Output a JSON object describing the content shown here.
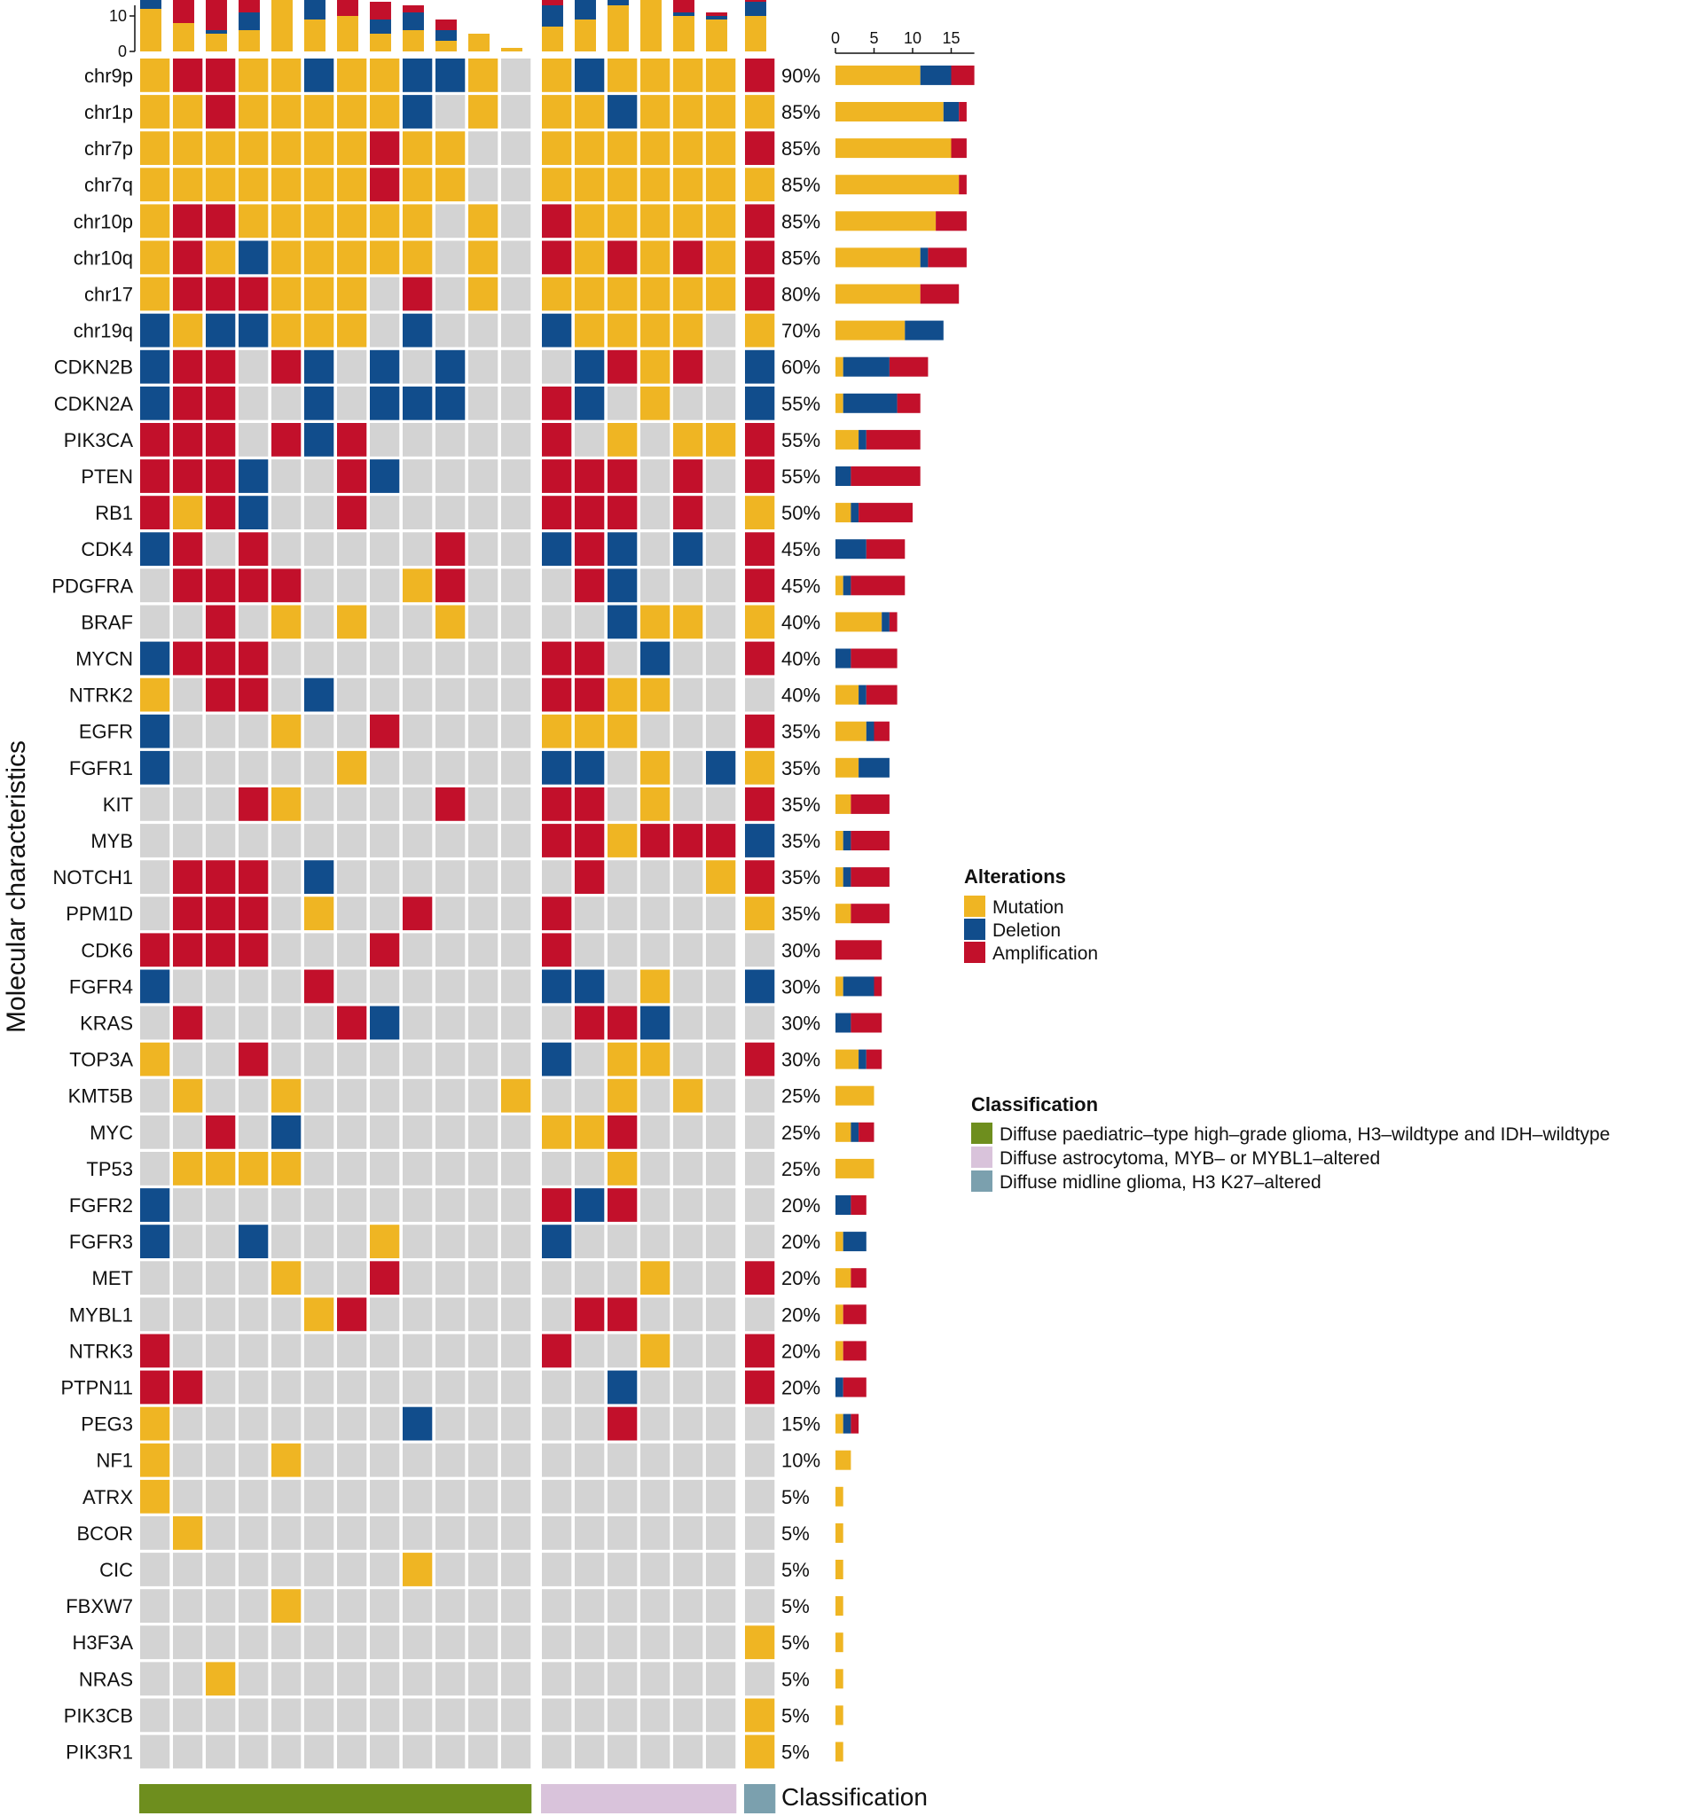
{
  "chart_data": {
    "type": "heatmap",
    "subtype": "oncoprint",
    "y_title": "Molecular characteristics",
    "colors": {
      "M": "#EFB523",
      "D": "#114D8C",
      "A": "#C2102B",
      "none": "#D3D3D3",
      "class_1": "#6E8E1E",
      "class_2": "#D9C3DB",
      "class_3": "#7BA0AE"
    },
    "status_codes": {
      "M": "Mutation",
      "D": "Deletion",
      "A": "Amplification",
      "0": "None"
    },
    "column_groups": [
      {
        "class": "class_1",
        "count": 12
      },
      {
        "class": "class_2",
        "count": 6
      },
      {
        "class": "class_3",
        "count": 1
      }
    ],
    "rows": [
      {
        "gene": "chr9p",
        "pct": "90%",
        "cells": "MAAMMDMMDDM0MDMMMMA"
      },
      {
        "gene": "chr1p",
        "pct": "85%",
        "cells": "MMAMMMMMD0M0MMDMMMM"
      },
      {
        "gene": "chr7p",
        "pct": "85%",
        "cells": "MMMMMMMAMM00MMMMMMA"
      },
      {
        "gene": "chr7q",
        "pct": "85%",
        "cells": "MMMMMMMAMM00MMMMMMM"
      },
      {
        "gene": "chr10p",
        "pct": "85%",
        "cells": "MAAMMMMMM0M0AMMMMMA"
      },
      {
        "gene": "chr10q",
        "pct": "85%",
        "cells": "MAMDMMMMM0M0AMAMAMA"
      },
      {
        "gene": "chr17",
        "pct": "80%",
        "cells": "MAAAMMM0A0M0MMMMMMA"
      },
      {
        "gene": "chr19q",
        "pct": "70%",
        "cells": "DMDDMMM0D000DMMMM0M"
      },
      {
        "gene": "CDKN2B",
        "pct": "60%",
        "cells": "DAA0AD0D0D000DAMA0D"
      },
      {
        "gene": "CDKN2A",
        "pct": "55%",
        "cells": "DAA00D0DDD00AD0M00D"
      },
      {
        "gene": "PIK3CA",
        "pct": "55%",
        "cells": "AAA0ADA00000A0M0MMA"
      },
      {
        "gene": "PTEN",
        "pct": "55%",
        "cells": "AAAD00AD0000AAA0A0A"
      },
      {
        "gene": "RB1",
        "pct": "50%",
        "cells": "AMAD00A00000AAA0A0M"
      },
      {
        "gene": "CDK4",
        "pct": "45%",
        "cells": "DA0A00000A00DAD0D0A"
      },
      {
        "gene": "PDGFRA",
        "pct": "45%",
        "cells": "0AAAA000MA000AD000A"
      },
      {
        "gene": "BRAF",
        "pct": "40%",
        "cells": "00A0M0M00M0000DMM0M"
      },
      {
        "gene": "MYCN",
        "pct": "40%",
        "cells": "DAAA00000000AA0D00A"
      },
      {
        "gene": "NTRK2",
        "pct": "40%",
        "cells": "M0AA0D000000AAMM000"
      },
      {
        "gene": "EGFR",
        "pct": "35%",
        "cells": "D000M00A0000MMM000A"
      },
      {
        "gene": "FGFR1",
        "pct": "35%",
        "cells": "D00000M00000DD0M0DM"
      },
      {
        "gene": "KIT",
        "pct": "35%",
        "cells": "000AM0000A00AA0M00A"
      },
      {
        "gene": "MYB",
        "pct": "35%",
        "cells": "000000000000AAMAAAD"
      },
      {
        "gene": "NOTCH1",
        "pct": "35%",
        "cells": "0AAA0D0000000A000MA"
      },
      {
        "gene": "PPM1D",
        "pct": "35%",
        "cells": "0AAA0M00A000A00000M"
      },
      {
        "gene": "CDK6",
        "pct": "30%",
        "cells": "AAAA000A0000A000000"
      },
      {
        "gene": "FGFR4",
        "pct": "30%",
        "cells": "D0000A000000DD0M00D"
      },
      {
        "gene": "KRAS",
        "pct": "30%",
        "cells": "0A0000AD00000AAD000"
      },
      {
        "gene": "TOP3A",
        "pct": "30%",
        "cells": "M00A00000000D0MM00A"
      },
      {
        "gene": "KMT5B",
        "pct": "25%",
        "cells": "0M00M000000M00M0M00"
      },
      {
        "gene": "MYC",
        "pct": "25%",
        "cells": "00A0D0000000MMA0000"
      },
      {
        "gene": "TP53",
        "pct": "25%",
        "cells": "0MMMM000000000M0000"
      },
      {
        "gene": "FGFR2",
        "pct": "20%",
        "cells": "D00000000000ADA0000"
      },
      {
        "gene": "FGFR3",
        "pct": "20%",
        "cells": "D00D000M0000D000000"
      },
      {
        "gene": "MET",
        "pct": "20%",
        "cells": "0000M00A0000000M00A"
      },
      {
        "gene": "MYBL1",
        "pct": "20%",
        "cells": "00000MA000000AA0000"
      },
      {
        "gene": "NTRK3",
        "pct": "20%",
        "cells": "A00000000000A00M00A"
      },
      {
        "gene": "PTPN11",
        "pct": "20%",
        "cells": "AA000000000000D000A"
      },
      {
        "gene": "PEG3",
        "pct": "15%",
        "cells": "M0000000D00000A0000"
      },
      {
        "gene": "NF1",
        "pct": "10%",
        "cells": "M000M00000000000000"
      },
      {
        "gene": "ATRX",
        "pct": "5%",
        "cells": "M000000000000000000"
      },
      {
        "gene": "BCOR",
        "pct": "5%",
        "cells": "0M00000000000000000"
      },
      {
        "gene": "CIC",
        "pct": "5%",
        "cells": "00000000M0000000000"
      },
      {
        "gene": "FBXW7",
        "pct": "5%",
        "cells": "0000M00000000000000"
      },
      {
        "gene": "H3F3A",
        "pct": "5%",
        "cells": "000000000000000000M"
      },
      {
        "gene": "NRAS",
        "pct": "5%",
        "cells": "00M0000000000000000"
      },
      {
        "gene": "PIK3CB",
        "pct": "5%",
        "cells": "000000000000000000M"
      },
      {
        "gene": "PIK3R1",
        "pct": "5%",
        "cells": "000000000000000000M"
      }
    ],
    "top_axis": {
      "ticks": [
        "0",
        "10"
      ],
      "max": 13
    },
    "right_axis": {
      "ticks": [
        "0",
        "5",
        "10",
        "15"
      ],
      "max": 18
    },
    "classification_label": "Classification"
  },
  "legend": {
    "alterations": {
      "title": "Alterations",
      "items": [
        {
          "label": "Mutation",
          "color": "#EFB523"
        },
        {
          "label": "Deletion",
          "color": "#114D8C"
        },
        {
          "label": "Amplification",
          "color": "#C2102B"
        }
      ]
    },
    "classification": {
      "title": "Classification",
      "items": [
        {
          "label": "Diffuse paediatric–type high–grade glioma, H3–wildtype and IDH–wildtype",
          "color": "#6E8E1E"
        },
        {
          "label": "Diffuse astrocytoma, MYB– or MYBL1–altered",
          "color": "#D9C3DB"
        },
        {
          "label": "Diffuse midline glioma, H3 K27–altered",
          "color": "#7BA0AE"
        }
      ]
    }
  }
}
